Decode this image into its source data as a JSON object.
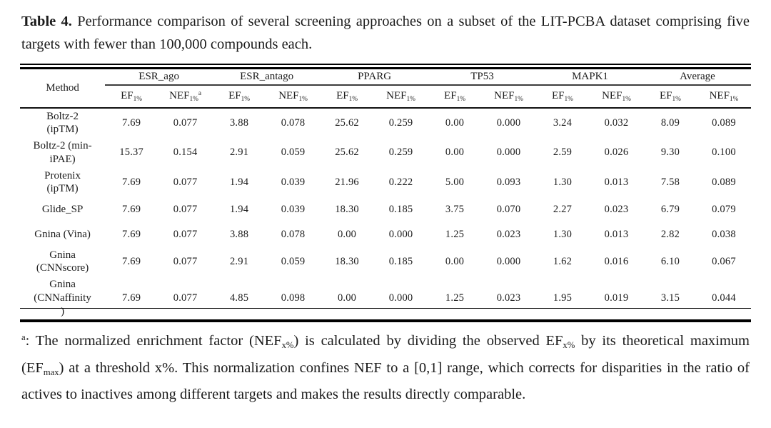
{
  "title": {
    "label": "Table 4.",
    "text": " Performance comparison of several screening approaches on a subset of the LIT-PCBA dataset comprising five targets with fewer than 100,000 compounds each."
  },
  "table": {
    "method_header": "Method",
    "groups": [
      "ESR_ago",
      "ESR_antago",
      "PPARG",
      "TP53",
      "MAPK1",
      "Average"
    ],
    "subheaders": [
      {
        "base": "EF",
        "sub": "1%"
      },
      {
        "base": "NEF",
        "sub": "1%",
        "sup": "a"
      },
      {
        "base": "EF",
        "sub": "1%"
      },
      {
        "base": "NEF",
        "sub": "1%"
      },
      {
        "base": "EF",
        "sub": "1%"
      },
      {
        "base": "NEF",
        "sub": "1%"
      },
      {
        "base": "EF",
        "sub": "1%"
      },
      {
        "base": "NEF",
        "sub": "1%"
      },
      {
        "base": "EF",
        "sub": "1%"
      },
      {
        "base": "NEF",
        "sub": "1%"
      },
      {
        "base": "EF",
        "sub": "1%"
      },
      {
        "base": "NEF",
        "sub": "1%"
      }
    ],
    "rows": [
      {
        "method": "Boltz-2\n(ipTM)",
        "values": [
          "7.69",
          "0.077",
          "3.88",
          "0.078",
          "25.62",
          "0.259",
          "0.00",
          "0.000",
          "3.24",
          "0.032",
          "8.09",
          "0.089"
        ],
        "bold": [
          4,
          5,
          8,
          9
        ]
      },
      {
        "method": "Boltz-2 (min-\niPAE)",
        "values": [
          "15.37",
          "0.154",
          "2.91",
          "0.059",
          "25.62",
          "0.259",
          "0.00",
          "0.000",
          "2.59",
          "0.026",
          "9.30",
          "0.100"
        ],
        "bold": [
          0,
          1,
          4,
          5,
          10,
          11
        ]
      },
      {
        "method": "Protenix\n(ipTM)",
        "values": [
          "7.69",
          "0.077",
          "1.94",
          "0.039",
          "21.96",
          "0.222",
          "5.00",
          "0.093",
          "1.30",
          "0.013",
          "7.58",
          "0.089"
        ],
        "bold": [
          6,
          7
        ]
      },
      {
        "method": "Glide_SP",
        "values": [
          "7.69",
          "0.077",
          "1.94",
          "0.039",
          "18.30",
          "0.185",
          "3.75",
          "0.070",
          "2.27",
          "0.023",
          "6.79",
          "0.079"
        ],
        "bold": []
      },
      {
        "method": "Gnina (Vina)",
        "values": [
          "7.69",
          "0.077",
          "3.88",
          "0.078",
          "0.00",
          "0.000",
          "1.25",
          "0.023",
          "1.30",
          "0.013",
          "2.82",
          "0.038"
        ],
        "bold": []
      },
      {
        "method": "Gnina\n(CNNscore)",
        "values": [
          "7.69",
          "0.077",
          "2.91",
          "0.059",
          "18.30",
          "0.185",
          "0.00",
          "0.000",
          "1.62",
          "0.016",
          "6.10",
          "0.067"
        ],
        "bold": []
      },
      {
        "method": "Gnina\n(CNNaffinity\n)",
        "values": [
          "7.69",
          "0.077",
          "4.85",
          "0.098",
          "0.00",
          "0.000",
          "1.25",
          "0.023",
          "1.95",
          "0.019",
          "3.15",
          "0.044"
        ],
        "bold": [
          2,
          3
        ]
      }
    ]
  },
  "footnote": {
    "segments": [
      {
        "t": "a",
        "style": "sup"
      },
      {
        "t": ": The normalized enrichment factor (NEF"
      },
      {
        "t": "x%",
        "style": "sub"
      },
      {
        "t": ") is calculated by dividing the observed EF"
      },
      {
        "t": "x%",
        "style": "sub"
      },
      {
        "t": " by its theoretical maximum (EF"
      },
      {
        "t": "max",
        "style": "sub"
      },
      {
        "t": ") at a threshold x%. This normalization confines NEF to a [0,1] range, which corrects for disparities in the ratio of actives to inactives among different targets and makes the results directly comparable."
      }
    ]
  }
}
